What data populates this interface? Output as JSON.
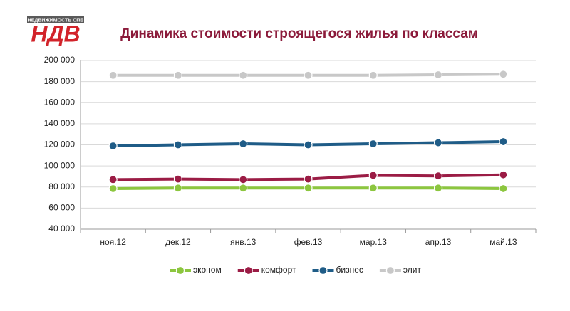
{
  "logo": {
    "top": "НЕДВИЖИМОСТЬ СПБ",
    "letters": "НДВ"
  },
  "chart_data": {
    "type": "line",
    "title": "Динамика стоимости строящегося жилья по классам",
    "categories": [
      "ноя.12",
      "дек.12",
      "янв.13",
      "фев.13",
      "мар.13",
      "апр.13",
      "май.13"
    ],
    "series": [
      {
        "name": "эконом",
        "color": "#8cc63f",
        "values": [
          78500,
          79000,
          79000,
          79000,
          79000,
          79000,
          78500
        ]
      },
      {
        "name": "комфорт",
        "color": "#9b1c45",
        "values": [
          87000,
          87500,
          87000,
          87500,
          91000,
          90500,
          91500
        ]
      },
      {
        "name": "бизнес",
        "color": "#1f5c87",
        "values": [
          119000,
          120000,
          121000,
          120000,
          121000,
          122000,
          123000
        ]
      },
      {
        "name": "элит",
        "color": "#c8c8c8",
        "values": [
          186000,
          186000,
          186000,
          186000,
          186000,
          186500,
          187000
        ]
      }
    ],
    "ylim": [
      40000,
      200000
    ],
    "yticks": [
      {
        "value": 40000,
        "label": "40 000"
      },
      {
        "value": 60000,
        "label": "60 000"
      },
      {
        "value": 80000,
        "label": "80 000"
      },
      {
        "value": 100000,
        "label": "100 000"
      },
      {
        "value": 120000,
        "label": "120 000"
      },
      {
        "value": 140000,
        "label": "140 000"
      },
      {
        "value": 160000,
        "label": "160 000"
      },
      {
        "value": 180000,
        "label": "180 000"
      },
      {
        "value": 200000,
        "label": "200 000"
      }
    ],
    "grid": true,
    "legend": "bottom"
  }
}
